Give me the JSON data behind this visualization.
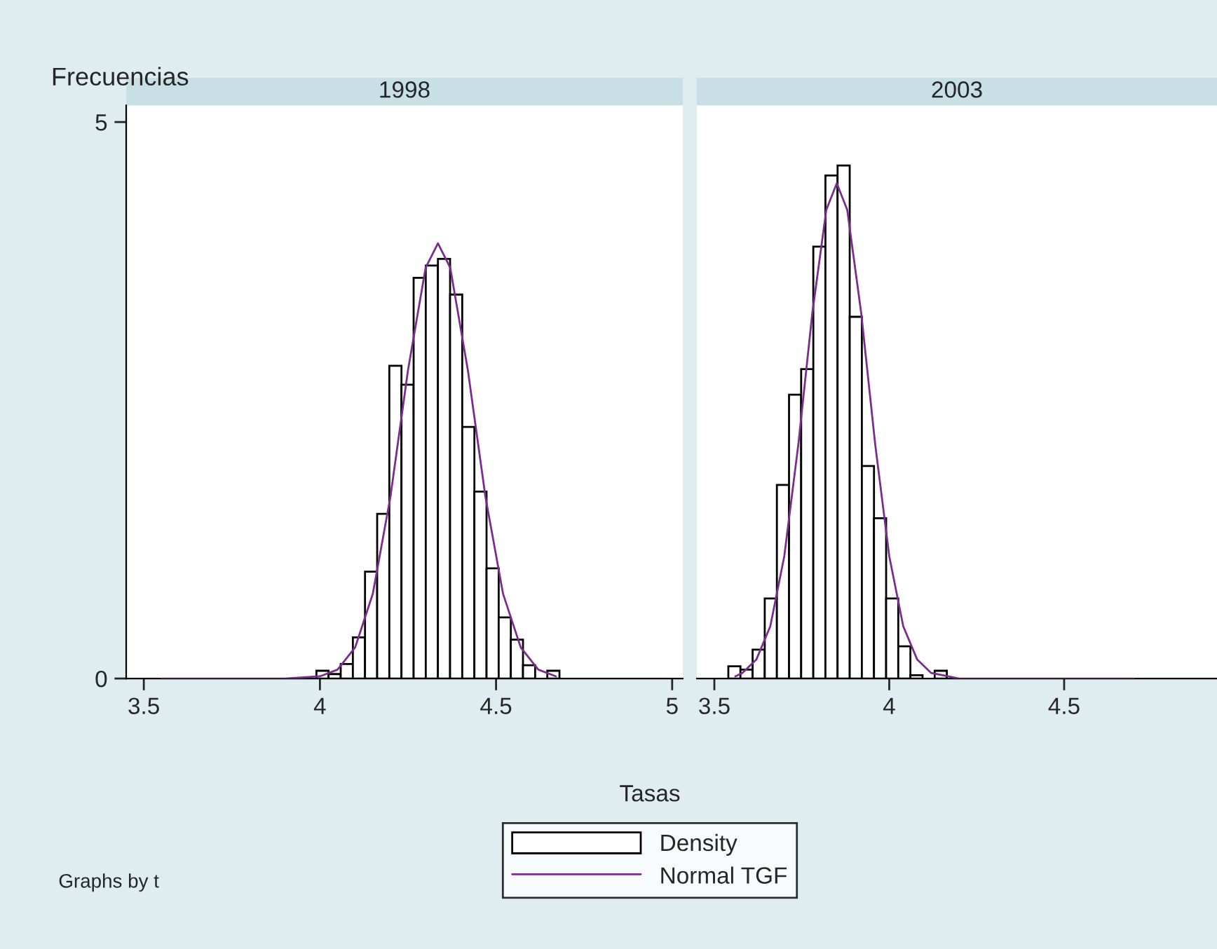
{
  "chart_data": [
    {
      "type": "histogram",
      "title": "1998",
      "ylabel": "Frecuencias",
      "xlabel": "Tasas",
      "legend": "bottom",
      "annotations": [
        "Graphs by t"
      ],
      "xlim": [
        3.45,
        5.03
      ],
      "xticks": [
        3.5,
        4,
        4.5,
        5
      ],
      "ylim": [
        0,
        5.15
      ],
      "yticks": [
        0,
        5
      ],
      "series": [
        {
          "type": "histogram",
          "name": "Density",
          "color": "#ffffff",
          "bins": [
            3.99,
            4.0245,
            4.059,
            4.0935,
            4.128,
            4.1625,
            4.197,
            4.2315,
            4.266,
            4.3005,
            4.335,
            4.3695,
            4.404,
            4.4385,
            4.473,
            4.5075,
            4.542,
            4.5765,
            4.611,
            4.6455,
            4.68
          ],
          "values": [
            0.07,
            0.04,
            0.13,
            0.37,
            0.96,
            1.48,
            2.81,
            2.64,
            3.6,
            3.71,
            3.77,
            3.45,
            2.26,
            1.68,
            0.99,
            0.55,
            0.35,
            0.12,
            0,
            0.07
          ]
        },
        {
          "type": "line",
          "name": "Normal TGF",
          "color": "#7b2d8e",
          "x": [
            3.55,
            3.9,
            4.0,
            4.05,
            4.1,
            4.15,
            4.2,
            4.25,
            4.3,
            4.335,
            4.37,
            4.42,
            4.47,
            4.52,
            4.57,
            4.62,
            4.67
          ],
          "values": [
            0,
            0,
            0.02,
            0.08,
            0.28,
            0.76,
            1.63,
            2.77,
            3.69,
            3.91,
            3.69,
            2.77,
            1.63,
            0.76,
            0.28,
            0.08,
            0.02
          ]
        }
      ]
    },
    {
      "type": "histogram",
      "title": "2003",
      "tick_labels": "x",
      "xlim": [
        3.45,
        4.937
      ],
      "xticks": [
        3.5,
        4,
        4.5
      ],
      "ylim": [
        0,
        5.15
      ],
      "series": [
        {
          "type": "histogram",
          "color": "#ffffff",
          "bins": [
            3.54,
            3.5747,
            3.6094,
            3.6441,
            3.6788,
            3.7135,
            3.7482,
            3.7829,
            3.8176,
            3.8523,
            3.887,
            3.9217,
            3.9564,
            3.9911,
            4.0258,
            4.0605,
            4.0952,
            4.1299,
            4.1646
          ],
          "values": [
            0.11,
            0.08,
            0.26,
            0.72,
            1.74,
            2.55,
            2.78,
            3.88,
            4.52,
            4.61,
            3.25,
            1.91,
            1.44,
            0.72,
            0.29,
            0.03,
            0,
            0.07
          ]
        },
        {
          "type": "line",
          "color": "#7b2d8e",
          "x": [
            3.56,
            3.58,
            3.62,
            3.66,
            3.7,
            3.74,
            3.78,
            3.82,
            3.85,
            3.88,
            3.92,
            3.96,
            4.0,
            4.04,
            4.08,
            4.12,
            4.2,
            4.7
          ],
          "values": [
            0.02,
            0.05,
            0.17,
            0.47,
            1.1,
            2.1,
            3.28,
            4.21,
            4.45,
            4.21,
            3.28,
            2.1,
            1.1,
            0.47,
            0.17,
            0.05,
            0,
            0
          ]
        }
      ]
    }
  ]
}
